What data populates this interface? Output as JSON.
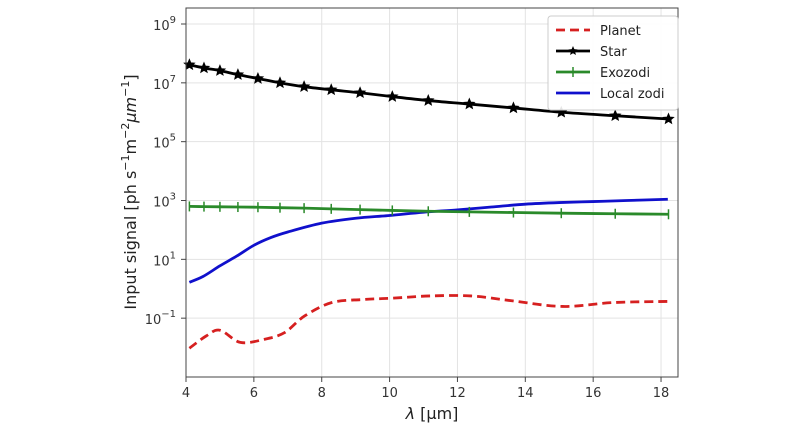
{
  "chart_data": {
    "type": "line",
    "title": "",
    "xlabel": "λ [μm]",
    "ylabel": "Input signal [ph s⁻¹m⁻²μm⁻¹]",
    "ylabel_parts": {
      "prefix": "Input signal [ph s",
      "exp1": "−1",
      "mid": "m",
      "exp2": "−2",
      "mu": "μm",
      "exp3": "−1",
      "suffix": "]"
    },
    "xlabel_parts": {
      "lambda": "λ",
      "unit": " [μm]"
    },
    "xscale": "linear",
    "yscale": "log",
    "xlim": [
      4,
      18.5
    ],
    "ylim": [
      0.001,
      3500000000.0
    ],
    "grid": true,
    "legend_position": "top-right",
    "xticks": [
      4,
      6,
      8,
      10,
      12,
      14,
      16,
      18
    ],
    "xtick_labels": [
      "4",
      "6",
      "8",
      "10",
      "12",
      "14",
      "16",
      "18"
    ],
    "yticks": [
      0.1,
      10,
      1000,
      100000,
      10000000,
      1000000000
    ],
    "ytick_labels": [
      {
        "base": "10",
        "exp": "−1"
      },
      {
        "base": "10",
        "exp": "1"
      },
      {
        "base": "10",
        "exp": "3"
      },
      {
        "base": "10",
        "exp": "5"
      },
      {
        "base": "10",
        "exp": "7"
      },
      {
        "base": "10",
        "exp": "9"
      }
    ],
    "series": [
      {
        "name": "Planet",
        "color": "#d62020",
        "style": "dashed",
        "marker": "none",
        "x": [
          4.1,
          4.6,
          5.0,
          5.6,
          6.3,
          6.9,
          7.5,
          8.3,
          9.2,
          10.1,
          11.2,
          12.4,
          13.6,
          15.1,
          16.6,
          18.2
        ],
        "y": [
          0.0095,
          0.025,
          0.039,
          0.015,
          0.019,
          0.032,
          0.12,
          0.34,
          0.43,
          0.48,
          0.57,
          0.57,
          0.39,
          0.25,
          0.34,
          0.37
        ]
      },
      {
        "name": "Star",
        "color": "#000000",
        "style": "solid",
        "marker": "star",
        "x": [
          4.1,
          4.53,
          5.0,
          5.53,
          6.12,
          6.77,
          7.48,
          8.28,
          9.13,
          10.08,
          11.14,
          12.35,
          13.65,
          15.06,
          16.65,
          18.22
        ],
        "y": [
          41000000,
          32000000,
          26000000,
          19000000,
          14000000,
          10000000,
          7400000,
          5800000,
          4600000,
          3400000,
          2500000,
          1900000,
          1400000,
          1000000,
          760000,
          590000
        ]
      },
      {
        "name": "Exozodi",
        "color": "#2a8a2a",
        "style": "solid",
        "marker": "vline",
        "x": [
          4.1,
          4.53,
          5.0,
          5.53,
          6.12,
          6.77,
          7.48,
          8.28,
          9.13,
          10.08,
          11.14,
          12.35,
          13.65,
          15.06,
          16.65,
          18.22
        ],
        "y": [
          630,
          620,
          610,
          600,
          590,
          570,
          550,
          520,
          490,
          460,
          430,
          410,
          390,
          370,
          355,
          340
        ]
      },
      {
        "name": "Local zodi",
        "color": "#1010cc",
        "style": "solid",
        "marker": "none",
        "x": [
          4.1,
          4.5,
          5.0,
          5.5,
          6.0,
          6.5,
          7.0,
          8.0,
          9.0,
          10.0,
          11.0,
          12.0,
          13.0,
          14.0,
          15.0,
          16.0,
          17.0,
          18.2
        ],
        "y": [
          1.66,
          2.6,
          6.0,
          13,
          30,
          55,
          85,
          170,
          250,
          310,
          400,
          480,
          600,
          750,
          850,
          920,
          1000,
          1100
        ]
      }
    ]
  }
}
